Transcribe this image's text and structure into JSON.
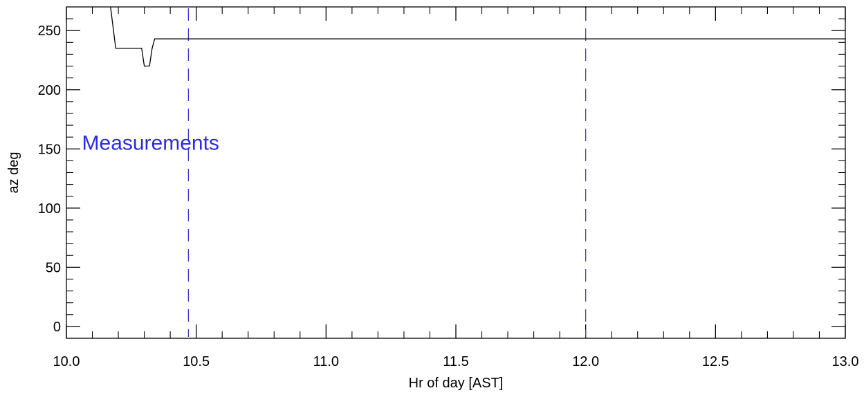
{
  "chart_data": {
    "type": "line",
    "title": "",
    "xlabel": "Hr of day [AST]",
    "ylabel": "az deg",
    "xlim": [
      10.0,
      13.0
    ],
    "ylim": [
      -10,
      270
    ],
    "x_ticks": [
      10.0,
      10.5,
      11.0,
      11.5,
      12.0,
      12.5,
      13.0
    ],
    "x_tick_labels": [
      "10.0",
      "10.5",
      "11.0",
      "11.5",
      "12.0",
      "12.5",
      "13.0"
    ],
    "x_minor_step": 0.1,
    "y_ticks": [
      0,
      50,
      100,
      150,
      200,
      250
    ],
    "y_tick_labels": [
      "0",
      "50",
      "100",
      "150",
      "200",
      "250"
    ],
    "y_minor_step": 10,
    "grid": false,
    "legend": "none",
    "series": [
      {
        "color": "#000000",
        "x": [
          10.17,
          10.19,
          10.29,
          10.3,
          10.32,
          10.33,
          10.34,
          13.0
        ],
        "y": [
          270,
          235,
          235,
          220,
          220,
          235,
          243,
          243
        ]
      }
    ],
    "vlines": [
      {
        "x": 10.47,
        "color": "#3a3ad0",
        "style": "dashed"
      },
      {
        "x": 12.0,
        "color": "#3a3ad0",
        "style": "dashed"
      }
    ],
    "annotation": {
      "text": "Measurements",
      "x": 10.06,
      "y": 155,
      "color": "#2b2be6"
    }
  }
}
